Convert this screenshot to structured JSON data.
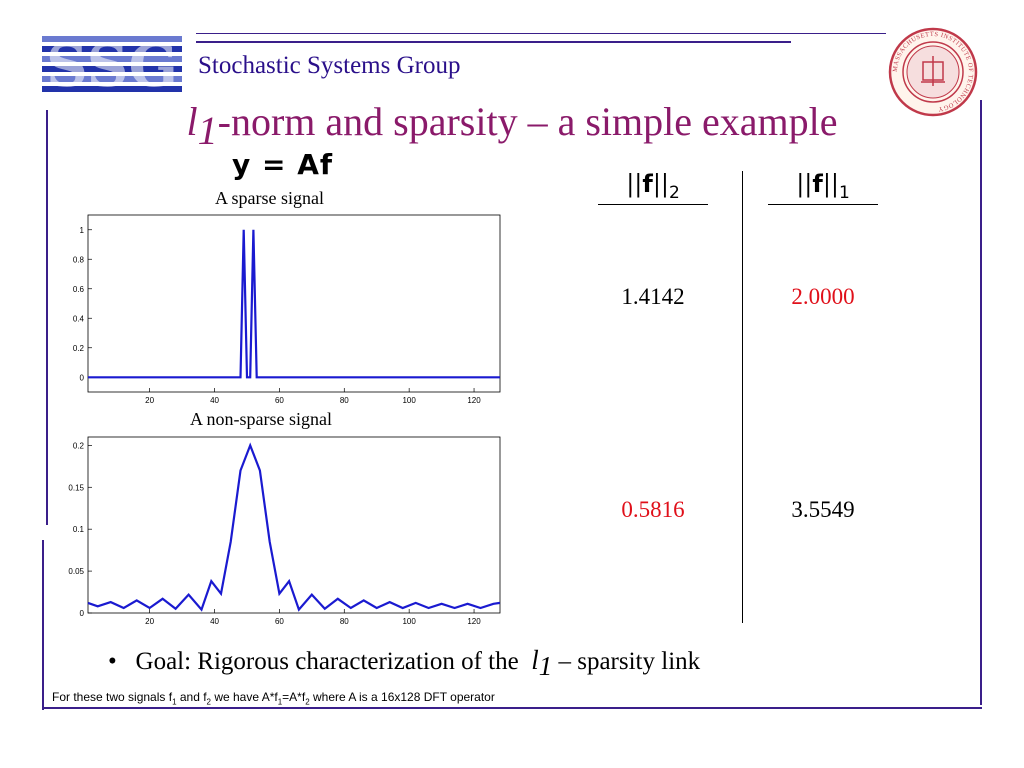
{
  "header": {
    "logo_text": "SSG",
    "group_name": "Stochastic Systems Group",
    "seal_text": "MASSACHUSETTS INSTITUTE OF TECHNOLOGY"
  },
  "slide": {
    "title_var": "l",
    "title_sub": "1",
    "title_rest": "-norm and sparsity – a simple example",
    "equation": "y = Af"
  },
  "plots": {
    "sparse_title": "A sparse signal",
    "nonsparse_title": "A non-sparse signal"
  },
  "table": {
    "col1": {
      "norm_var": "f",
      "norm_sub": "2"
    },
    "col2": {
      "norm_var": "f",
      "norm_sub": "1"
    },
    "rows": [
      {
        "v1": "1.4142",
        "v2": "2.0000"
      },
      {
        "v1": "0.5816",
        "v2": "3.5549"
      }
    ],
    "highlight_color": "#e0101a"
  },
  "bullet": {
    "prefix": "Goal: Rigorous characterization of the",
    "var": "l",
    "sub": "1",
    "suffix": "– sparsity link"
  },
  "footnote": {
    "p1": "For these two signals f",
    "s1": "1",
    "p2": " and f",
    "s2": "2",
    "p3": " we have A*f",
    "s3": "1",
    "p4": "=A*f",
    "s4": "2",
    "p5": " where A is a 16x128 DFT operator"
  },
  "colors": {
    "title": "#8a1a6a",
    "rule": "#3a1f8a",
    "signal": "#1a1ad0"
  },
  "chart_data": [
    {
      "type": "line",
      "title": "A sparse signal",
      "xlabel": "",
      "ylabel": "",
      "xlim": [
        1,
        128
      ],
      "ylim": [
        -0.1,
        1.1
      ],
      "xticks": [
        20,
        40,
        60,
        80,
        100,
        120
      ],
      "yticks": [
        0,
        0.2,
        0.4,
        0.6,
        0.8,
        1
      ],
      "ytick_labels": [
        "0",
        "0.2",
        "0.4",
        "0.6",
        "0.8",
        "1"
      ],
      "grid": false,
      "series": [
        {
          "x": [
            1,
            48,
            49,
            50,
            51,
            52,
            53,
            54,
            128
          ],
          "y": [
            0,
            0,
            1,
            0,
            0,
            1,
            0,
            0,
            0
          ]
        }
      ]
    },
    {
      "type": "line",
      "title": "A non-sparse signal",
      "xlabel": "",
      "ylabel": "",
      "xlim": [
        1,
        128
      ],
      "ylim": [
        0,
        0.21
      ],
      "xticks": [
        20,
        40,
        60,
        80,
        100,
        120
      ],
      "yticks": [
        0,
        0.05,
        0.1,
        0.15,
        0.2
      ],
      "ytick_labels": [
        "0",
        "0.05",
        "0.1",
        "0.15",
        "0.2"
      ],
      "grid": false,
      "series": [
        {
          "x": [
            1,
            4,
            8,
            12,
            16,
            20,
            24,
            28,
            32,
            36,
            39,
            42,
            45,
            48,
            51,
            54,
            57,
            60,
            63,
            66,
            70,
            74,
            78,
            82,
            86,
            90,
            94,
            98,
            102,
            106,
            110,
            114,
            118,
            122,
            126,
            128
          ],
          "y": [
            0.012,
            0.008,
            0.013,
            0.006,
            0.015,
            0.006,
            0.017,
            0.005,
            0.022,
            0.004,
            0.038,
            0.023,
            0.085,
            0.17,
            0.2,
            0.17,
            0.085,
            0.023,
            0.038,
            0.004,
            0.022,
            0.005,
            0.017,
            0.006,
            0.015,
            0.006,
            0.013,
            0.006,
            0.012,
            0.006,
            0.011,
            0.006,
            0.011,
            0.006,
            0.011,
            0.012
          ]
        }
      ]
    }
  ]
}
